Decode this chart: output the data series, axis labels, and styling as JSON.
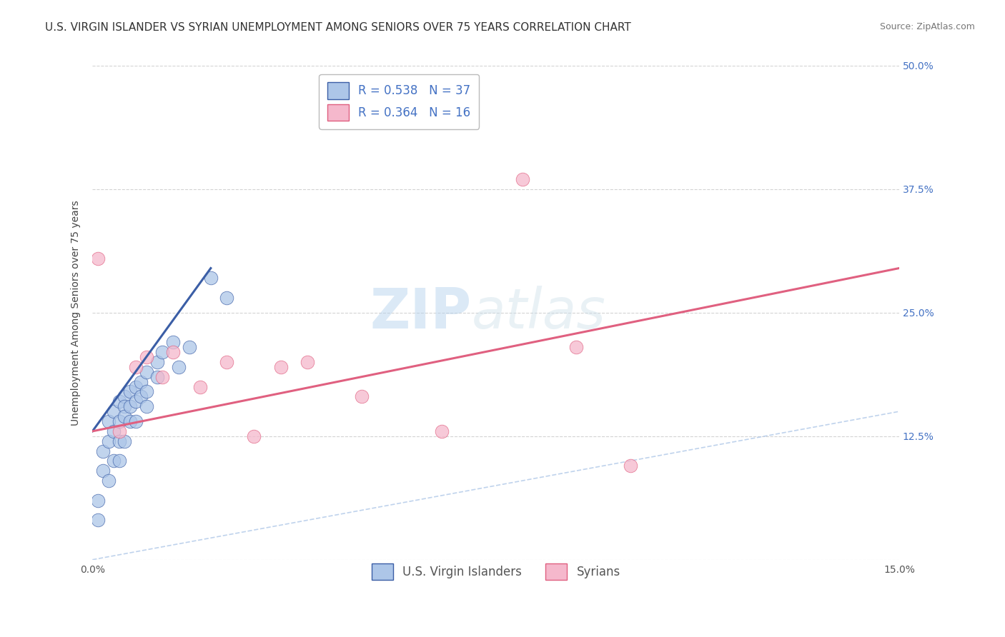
{
  "title": "U.S. VIRGIN ISLANDER VS SYRIAN UNEMPLOYMENT AMONG SENIORS OVER 75 YEARS CORRELATION CHART",
  "source": "Source: ZipAtlas.com",
  "ylabel": "Unemployment Among Seniors over 75 years",
  "xlim": [
    0.0,
    0.15
  ],
  "ylim": [
    0.0,
    0.5
  ],
  "xticks": [
    0.0,
    0.03,
    0.06,
    0.09,
    0.12,
    0.15
  ],
  "xticklabels": [
    "0.0%",
    "",
    "",
    "",
    "",
    "15.0%"
  ],
  "yticks": [
    0.0,
    0.125,
    0.25,
    0.375,
    0.5
  ],
  "yticklabels_right": [
    "",
    "12.5%",
    "25.0%",
    "37.5%",
    "50.0%"
  ],
  "blue_R": 0.538,
  "blue_N": 37,
  "pink_R": 0.364,
  "pink_N": 16,
  "blue_label": "U.S. Virgin Islanders",
  "pink_label": "Syrians",
  "background_color": "#ffffff",
  "plot_bg_color": "#ffffff",
  "grid_color": "#c8c8c8",
  "watermark_zip": "ZIP",
  "watermark_atlas": "atlas",
  "blue_scatter_color": "#adc6e8",
  "pink_scatter_color": "#f5b8cc",
  "blue_line_color": "#3b5ea6",
  "pink_line_color": "#e06080",
  "tick_color": "#4472c4",
  "blue_scatter_x": [
    0.001,
    0.001,
    0.002,
    0.002,
    0.003,
    0.003,
    0.003,
    0.004,
    0.004,
    0.004,
    0.005,
    0.005,
    0.005,
    0.005,
    0.006,
    0.006,
    0.006,
    0.006,
    0.007,
    0.007,
    0.007,
    0.008,
    0.008,
    0.008,
    0.009,
    0.009,
    0.01,
    0.01,
    0.01,
    0.012,
    0.012,
    0.013,
    0.015,
    0.016,
    0.018,
    0.022,
    0.025
  ],
  "blue_scatter_y": [
    0.04,
    0.06,
    0.11,
    0.09,
    0.14,
    0.12,
    0.08,
    0.15,
    0.13,
    0.1,
    0.16,
    0.14,
    0.12,
    0.1,
    0.165,
    0.155,
    0.145,
    0.12,
    0.17,
    0.155,
    0.14,
    0.175,
    0.16,
    0.14,
    0.18,
    0.165,
    0.19,
    0.17,
    0.155,
    0.2,
    0.185,
    0.21,
    0.22,
    0.195,
    0.215,
    0.285,
    0.265
  ],
  "pink_scatter_x": [
    0.001,
    0.005,
    0.008,
    0.01,
    0.013,
    0.015,
    0.02,
    0.025,
    0.03,
    0.035,
    0.04,
    0.05,
    0.065,
    0.08,
    0.09,
    0.1
  ],
  "pink_scatter_y": [
    0.305,
    0.13,
    0.195,
    0.205,
    0.185,
    0.21,
    0.175,
    0.2,
    0.125,
    0.195,
    0.2,
    0.165,
    0.13,
    0.385,
    0.215,
    0.095
  ],
  "blue_trendline_x": [
    0.0,
    0.022
  ],
  "blue_trendline_y": [
    0.13,
    0.295
  ],
  "pink_trendline_x": [
    0.0,
    0.15
  ],
  "pink_trendline_y": [
    0.13,
    0.295
  ],
  "ref_line_x": [
    0.0,
    0.15
  ],
  "ref_line_y": [
    0.0,
    0.15
  ],
  "title_fontsize": 11,
  "axis_label_fontsize": 10,
  "tick_fontsize": 10,
  "legend_fontsize": 12,
  "source_fontsize": 9
}
